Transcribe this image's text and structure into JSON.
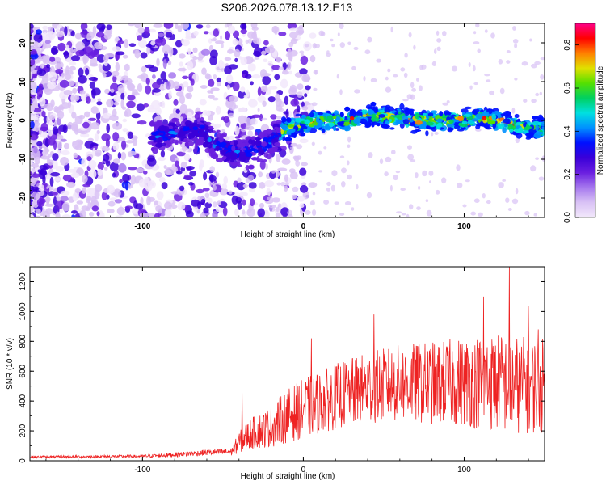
{
  "colors": {
    "snr_line": "#ee2222",
    "background": "#ffffff",
    "colormap": [
      "#f2e8fb",
      "#d9c2f5",
      "#a678ee",
      "#6a1fe0",
      "#3a00d8",
      "#0010ff",
      "#0090ff",
      "#00e0e0",
      "#00d060",
      "#55e000",
      "#e0e000",
      "#ff8000",
      "#ff0000",
      "#ff0088"
    ]
  },
  "chart_data": [
    {
      "type": "heatmap",
      "title": "S206.2026.078.13.12.E13",
      "xlabel": "Height of straight line (km)",
      "ylabel": "Frequency (Hz)",
      "xlim": [
        -170,
        150
      ],
      "ylim": [
        -25,
        25
      ],
      "xticks": [
        -100,
        0,
        100
      ],
      "xtick_labels": [
        "-100",
        "0",
        "100"
      ],
      "yticks": [
        -20,
        -10,
        0,
        10,
        20
      ],
      "ytick_labels": [
        "-20",
        "-10",
        "0",
        "10",
        "20"
      ],
      "ridge": {
        "description_points_x": [
          -90,
          -75,
          -65,
          -55,
          -45,
          -35,
          -25,
          -15,
          -10,
          0,
          10,
          20,
          30,
          40,
          50,
          60,
          70,
          80,
          90,
          100,
          110,
          120,
          130,
          140,
          150
        ],
        "description_points_freq": [
          -4,
          -3,
          -2,
          -6,
          -8,
          -8,
          -7,
          -3,
          -2,
          -1,
          0,
          0,
          0,
          1,
          1,
          1,
          0,
          0,
          0,
          0,
          1,
          0,
          -1,
          -2,
          -2
        ]
      },
      "colorbar": {
        "label": "Normalized spectral amplitude",
        "range": [
          0,
          0.9
        ],
        "ticks": [
          0.0,
          0.2,
          0.4,
          0.6,
          0.8
        ],
        "tick_labels": [
          "0.0",
          "0.2",
          "0.4",
          "0.6",
          "0.8"
        ]
      }
    },
    {
      "type": "line",
      "xlabel": "Height of straight line (km)",
      "ylabel": "SNR (10 * v/v)",
      "xlim": [
        -170,
        150
      ],
      "ylim": [
        0,
        1300
      ],
      "xticks": [
        -100,
        0,
        100
      ],
      "xtick_labels": [
        "-100",
        "0",
        "100"
      ],
      "yticks": [
        0,
        200,
        400,
        600,
        800,
        1000,
        1200
      ],
      "ytick_labels": [
        "0",
        "200",
        "400",
        "600",
        "800",
        "1000",
        "1200"
      ],
      "envelope": {
        "x": [
          -170,
          -100,
          -80,
          -60,
          -45,
          -40,
          -35,
          -20,
          -10,
          0,
          20,
          40,
          60,
          80,
          100,
          120,
          150
        ],
        "mean": [
          25,
          30,
          40,
          55,
          60,
          120,
          170,
          230,
          300,
          350,
          430,
          490,
          520,
          520,
          530,
          520,
          500
        ],
        "amp": [
          8,
          10,
          15,
          20,
          25,
          70,
          100,
          140,
          180,
          200,
          220,
          240,
          260,
          280,
          300,
          340,
          320
        ]
      },
      "spikes": [
        {
          "x": -38,
          "y": 460
        },
        {
          "x": 5,
          "y": 820
        },
        {
          "x": 44,
          "y": 980
        },
        {
          "x": 112,
          "y": 1100
        },
        {
          "x": 128,
          "y": 1300
        },
        {
          "x": 140,
          "y": 1040
        },
        {
          "x": 146,
          "y": 880
        }
      ]
    }
  ]
}
